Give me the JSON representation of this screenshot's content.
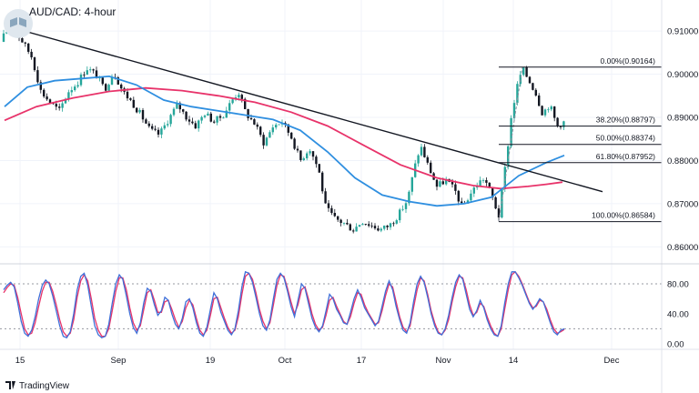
{
  "title": "AUD/CAD: 4-hour",
  "brand": "TradingView",
  "colors": {
    "up": "#26a69a",
    "down": "#131722",
    "ma_fast": "#2f8fe0",
    "ma_slow": "#e8336a",
    "trendline": "#131722",
    "stoch_k": "#3f6fd8",
    "stoch_d": "#e8336a",
    "grid": "#f0f3fa",
    "axis_panel": "#f7f8fa"
  },
  "chart_data": [
    {
      "type": "candlestick",
      "title": "AUD/CAD: 4-hour",
      "x_tick_labels": [
        "15",
        "Sep",
        "19",
        "Oct",
        "17",
        "Nov",
        "14",
        "Dec"
      ],
      "y_tick_labels": [
        "0.91000",
        "0.90000",
        "0.89000",
        "0.88000",
        "0.87000",
        "0.86000"
      ],
      "ylim": [
        0.8565,
        0.9155
      ],
      "grid": true,
      "price_path": [
        [
          0,
          0.9075
        ],
        [
          10,
          0.9108
        ],
        [
          22,
          0.9085
        ],
        [
          35,
          0.904
        ],
        [
          45,
          0.896
        ],
        [
          55,
          0.8935
        ],
        [
          65,
          0.8915
        ],
        [
          75,
          0.896
        ],
        [
          85,
          0.898
        ],
        [
          95,
          0.9015
        ],
        [
          105,
          0.9
        ],
        [
          115,
          0.8965
        ],
        [
          125,
          0.9005
        ],
        [
          135,
          0.896
        ],
        [
          145,
          0.8935
        ],
        [
          155,
          0.8905
        ],
        [
          165,
          0.887
        ],
        [
          175,
          0.886
        ],
        [
          185,
          0.8895
        ],
        [
          195,
          0.893
        ],
        [
          205,
          0.89
        ],
        [
          215,
          0.888
        ],
        [
          225,
          0.891
        ],
        [
          235,
          0.889
        ],
        [
          245,
          0.8905
        ],
        [
          255,
          0.894
        ],
        [
          262,
          0.896
        ],
        [
          270,
          0.891
        ],
        [
          280,
          0.8885
        ],
        [
          290,
          0.884
        ],
        [
          300,
          0.888
        ],
        [
          310,
          0.889
        ],
        [
          320,
          0.8855
        ],
        [
          330,
          0.88
        ],
        [
          340,
          0.883
        ],
        [
          350,
          0.878
        ],
        [
          358,
          0.869
        ],
        [
          368,
          0.8665
        ],
        [
          378,
          0.8655
        ],
        [
          388,
          0.864
        ],
        [
          398,
          0.866
        ],
        [
          408,
          0.865
        ],
        [
          418,
          0.864
        ],
        [
          428,
          0.865
        ],
        [
          438,
          0.8675
        ],
        [
          448,
          0.871
        ],
        [
          455,
          0.878
        ],
        [
          462,
          0.8835
        ],
        [
          470,
          0.879
        ],
        [
          480,
          0.874
        ],
        [
          490,
          0.8755
        ],
        [
          500,
          0.873
        ],
        [
          508,
          0.869
        ],
        [
          516,
          0.872
        ],
        [
          524,
          0.8745
        ],
        [
          532,
          0.876
        ],
        [
          540,
          0.872
        ],
        [
          548,
          0.8672
        ],
        [
          556,
          0.88
        ],
        [
          562,
          0.8905
        ],
        [
          568,
          0.897
        ],
        [
          574,
          0.9014
        ],
        [
          580,
          0.899
        ],
        [
          588,
          0.896
        ],
        [
          596,
          0.891
        ],
        [
          604,
          0.893
        ],
        [
          612,
          0.888
        ],
        [
          620,
          0.889
        ]
      ],
      "moving_average_fast": [
        [
          5,
          0.8925
        ],
        [
          30,
          0.897
        ],
        [
          60,
          0.8985
        ],
        [
          90,
          0.899
        ],
        [
          120,
          0.8995
        ],
        [
          150,
          0.8975
        ],
        [
          180,
          0.894
        ],
        [
          210,
          0.8925
        ],
        [
          240,
          0.8915
        ],
        [
          270,
          0.8905
        ],
        [
          300,
          0.8895
        ],
        [
          330,
          0.887
        ],
        [
          360,
          0.882
        ],
        [
          390,
          0.876
        ],
        [
          420,
          0.872
        ],
        [
          450,
          0.8705
        ],
        [
          480,
          0.8695
        ],
        [
          510,
          0.87
        ],
        [
          540,
          0.8715
        ],
        [
          570,
          0.8765
        ],
        [
          600,
          0.8795
        ],
        [
          620,
          0.8812
        ]
      ],
      "moving_average_slow": [
        [
          5,
          0.8893
        ],
        [
          40,
          0.8925
        ],
        [
          80,
          0.8945
        ],
        [
          120,
          0.896
        ],
        [
          160,
          0.8968
        ],
        [
          200,
          0.8962
        ],
        [
          240,
          0.895
        ],
        [
          280,
          0.8935
        ],
        [
          320,
          0.8912
        ],
        [
          360,
          0.888
        ],
        [
          400,
          0.8835
        ],
        [
          440,
          0.879
        ],
        [
          480,
          0.876
        ],
        [
          520,
          0.8742
        ],
        [
          550,
          0.8735
        ],
        [
          580,
          0.874
        ],
        [
          600,
          0.8745
        ],
        [
          618,
          0.875
        ]
      ],
      "trendline": [
        [
          8,
          0.9111
        ],
        [
          662,
          0.8728
        ]
      ],
      "fibonacci": {
        "x_range": [
          548,
          727
        ],
        "levels": [
          {
            "label": "0.00%(0.90164)",
            "price": 0.90164
          },
          {
            "label": "38.20%(0.88797)",
            "price": 0.88797
          },
          {
            "label": "50.00%(0.88374)",
            "price": 0.88374
          },
          {
            "label": "61.80%(0.87952)",
            "price": 0.87952
          },
          {
            "label": "100.00%(0.86584)",
            "price": 0.86584
          }
        ]
      }
    },
    {
      "type": "line",
      "name": "stochastic",
      "y_tick_labels": [
        "80.00",
        "40.00",
        "0.00"
      ],
      "ylim": [
        -5,
        103
      ],
      "reference_levels": [
        80,
        20
      ],
      "k_values": [
        72,
        78,
        82,
        76,
        55,
        30,
        14,
        10,
        18,
        36,
        60,
        78,
        85,
        80,
        64,
        44,
        24,
        10,
        8,
        16,
        40,
        72,
        90,
        94,
        78,
        50,
        24,
        12,
        8,
        10,
        26,
        54,
        80,
        92,
        86,
        64,
        40,
        22,
        14,
        28,
        55,
        74,
        70,
        52,
        38,
        44,
        62,
        58,
        40,
        26,
        20,
        34,
        56,
        60,
        48,
        28,
        14,
        10,
        22,
        46,
        68,
        60,
        42,
        30,
        18,
        12,
        20,
        44,
        76,
        96,
        94,
        82,
        62,
        40,
        24,
        18,
        32,
        60,
        86,
        94,
        88,
        70,
        50,
        36,
        58,
        80,
        74,
        54,
        34,
        22,
        16,
        24,
        44,
        66,
        60,
        46,
        38,
        28,
        26,
        42,
        60,
        72,
        62,
        48,
        40,
        32,
        24,
        30,
        50,
        70,
        84,
        72,
        50,
        32,
        18,
        14,
        28,
        56,
        80,
        90,
        82,
        62,
        40,
        24,
        14,
        12,
        20,
        38,
        62,
        82,
        92,
        86,
        66,
        46,
        36,
        44,
        58,
        48,
        32,
        20,
        12,
        10,
        24,
        54,
        80,
        96,
        96,
        88,
        78,
        66,
        54,
        46,
        52,
        60,
        56,
        42,
        28,
        16,
        12,
        18,
        20
      ],
      "d_values": [
        68,
        75,
        80,
        78,
        62,
        40,
        20,
        12,
        14,
        28,
        50,
        70,
        82,
        82,
        70,
        52,
        32,
        16,
        10,
        14,
        32,
        62,
        84,
        92,
        84,
        60,
        34,
        18,
        10,
        10,
        20,
        44,
        70,
        88,
        88,
        72,
        48,
        28,
        18,
        24,
        46,
        68,
        72,
        58,
        42,
        42,
        56,
        58,
        46,
        32,
        22,
        30,
        48,
        58,
        52,
        34,
        18,
        12,
        18,
        38,
        60,
        62,
        48,
        34,
        22,
        14,
        18,
        36,
        66,
        90,
        94,
        86,
        68,
        46,
        30,
        20,
        28,
        52,
        78,
        92,
        90,
        74,
        56,
        40,
        52,
        72,
        76,
        60,
        40,
        26,
        18,
        22,
        38,
        58,
        62,
        50,
        40,
        30,
        26,
        36,
        54,
        68,
        66,
        52,
        42,
        34,
        26,
        28,
        44,
        64,
        80,
        76,
        56,
        36,
        22,
        16,
        24,
        48,
        72,
        88,
        84,
        66,
        44,
        28,
        16,
        12,
        18,
        32,
        56,
        76,
        90,
        88,
        72,
        52,
        38,
        42,
        54,
        50,
        36,
        24,
        14,
        10,
        20,
        46,
        72,
        92,
        96,
        90,
        80,
        68,
        56,
        48,
        50,
        58,
        56,
        46,
        32,
        20,
        14,
        16,
        19
      ]
    }
  ]
}
